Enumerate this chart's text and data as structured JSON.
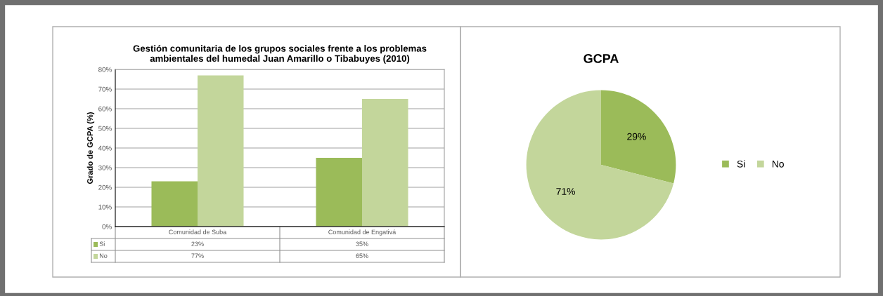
{
  "chart_data": [
    {
      "type": "bar",
      "title": "Gestión comunitaria de los grupos sociales frente a los problemas\nambientales del humedal Juan Amarillo o Tibabuyes (2010)",
      "ylabel": "Grado de GCPA (%)",
      "categories": [
        "Comunidad de Suba",
        "Comunidad de Engativá"
      ],
      "series": [
        {
          "name": "Si",
          "color": "#9bbb59",
          "values": [
            23,
            35
          ],
          "value_labels": [
            "23%",
            "35%"
          ]
        },
        {
          "name": "No",
          "color": "#c3d69b",
          "values": [
            77,
            65
          ],
          "value_labels": [
            "77%",
            "65%"
          ]
        }
      ],
      "ylim": [
        0,
        80
      ],
      "yticks": [
        {
          "value": 0,
          "label": "0%"
        },
        {
          "value": 10,
          "label": "10%"
        },
        {
          "value": 20,
          "label": "20%"
        },
        {
          "value": 30,
          "label": "30%"
        },
        {
          "value": 40,
          "label": "40%"
        },
        {
          "value": 50,
          "label": "50%"
        },
        {
          "value": 60,
          "label": "60%"
        },
        {
          "value": 70,
          "label": "70%"
        },
        {
          "value": 80,
          "label": "80%"
        }
      ],
      "grid": "y",
      "legend": "bottom"
    },
    {
      "type": "pie",
      "title": "GCPA",
      "categories": [
        "Si",
        "No"
      ],
      "values": [
        29,
        71
      ],
      "value_labels": [
        "29%",
        "71%"
      ],
      "colors": [
        "#9bbb59",
        "#c3d69b"
      ],
      "legend": "right"
    }
  ]
}
